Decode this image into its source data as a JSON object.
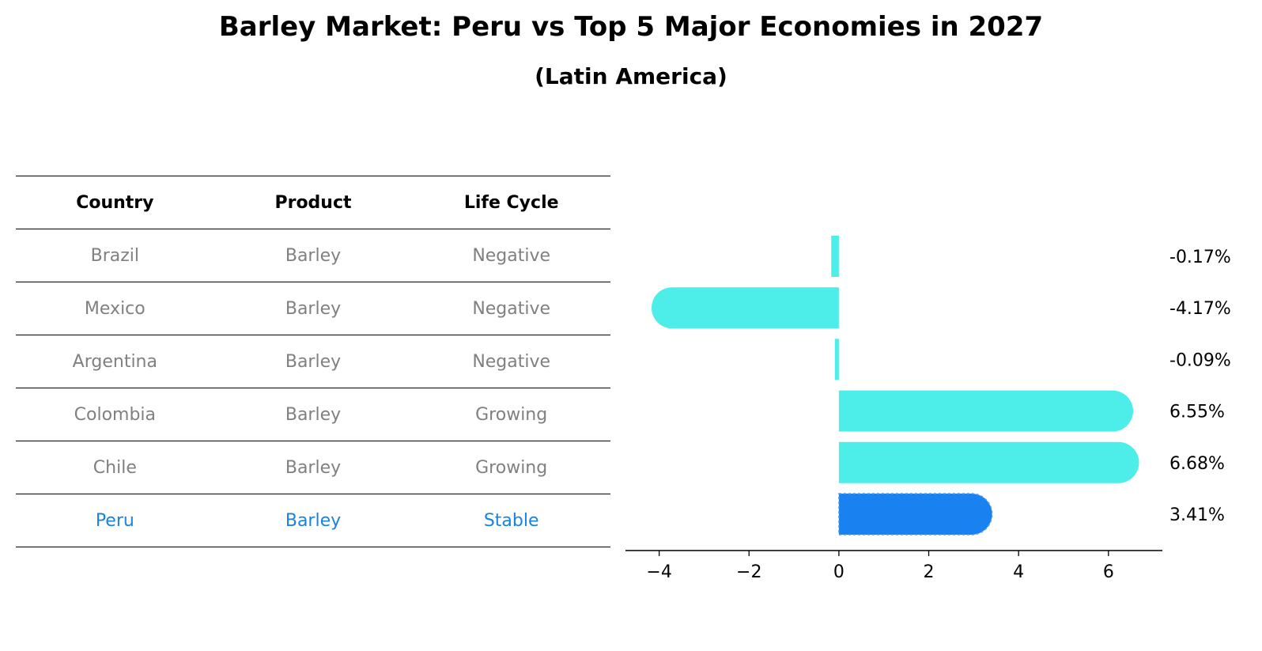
{
  "title": "Barley Market: Peru vs Top 5 Major Economies in 2027",
  "subtitle": "(Latin America)",
  "table": {
    "headers": [
      "Country",
      "Product",
      "Life Cycle"
    ],
    "rows": [
      {
        "country": "Brazil",
        "product": "Barley",
        "life_cycle": "Negative"
      },
      {
        "country": "Mexico",
        "product": "Barley",
        "life_cycle": "Negative"
      },
      {
        "country": "Argentina",
        "product": "Barley",
        "life_cycle": "Negative"
      },
      {
        "country": "Colombia",
        "product": "Barley",
        "life_cycle": "Growing"
      },
      {
        "country": "Chile",
        "product": "Barley",
        "life_cycle": "Growing"
      },
      {
        "country": "Peru",
        "product": "Barley",
        "life_cycle": "Stable"
      }
    ],
    "highlight_color": "#1a82e0",
    "text_color": "#808080"
  },
  "chart_data": {
    "type": "bar",
    "orientation": "horizontal",
    "categories": [
      "Brazil",
      "Mexico",
      "Argentina",
      "Colombia",
      "Chile",
      "Peru"
    ],
    "values": [
      -0.17,
      -4.17,
      -0.09,
      6.55,
      6.68,
      3.41
    ],
    "value_labels": [
      "-0.17%",
      "-4.17%",
      "-0.09%",
      "6.55%",
      "6.68%",
      "3.41%"
    ],
    "highlight": "Peru",
    "colors": {
      "default": "#4deeea",
      "highlight": "#1a82f0"
    },
    "xlim": [
      -4.75,
      7.2
    ],
    "xticks": [
      -4,
      -2,
      0,
      2,
      4,
      6
    ],
    "xtick_labels": [
      "−4",
      "−2",
      "0",
      "2",
      "4",
      "6"
    ],
    "grid": false
  }
}
